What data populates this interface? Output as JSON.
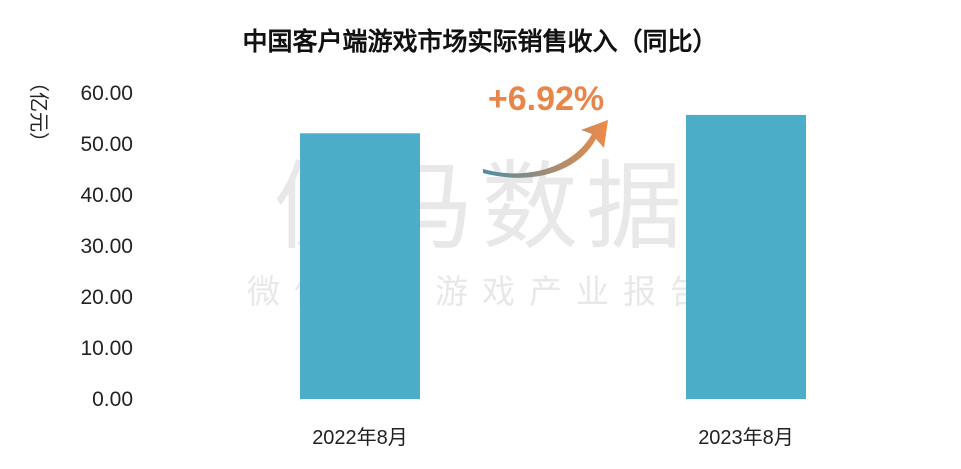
{
  "chart_data": {
    "type": "bar",
    "title": "中国客户端游戏市场实际销售收入（同比）",
    "ylabel": "（亿元）",
    "categories": [
      "2022年8月",
      "2023年8月"
    ],
    "values": [
      52.1,
      55.7
    ],
    "ylim": [
      0,
      60
    ],
    "yticks": [
      "0.00",
      "10.00",
      "20.00",
      "30.00",
      "40.00",
      "50.00",
      "60.00"
    ],
    "grid": false,
    "legend": "none",
    "annotation": "+6.92%"
  },
  "watermark": {
    "main": "伽马数据",
    "sub": "微信号：游戏产业报告"
  },
  "colors": {
    "bar": "#4badc7",
    "annotation": "#e8864a",
    "arrow_start": "#4a8fa6",
    "arrow_end": "#ef8a48"
  }
}
